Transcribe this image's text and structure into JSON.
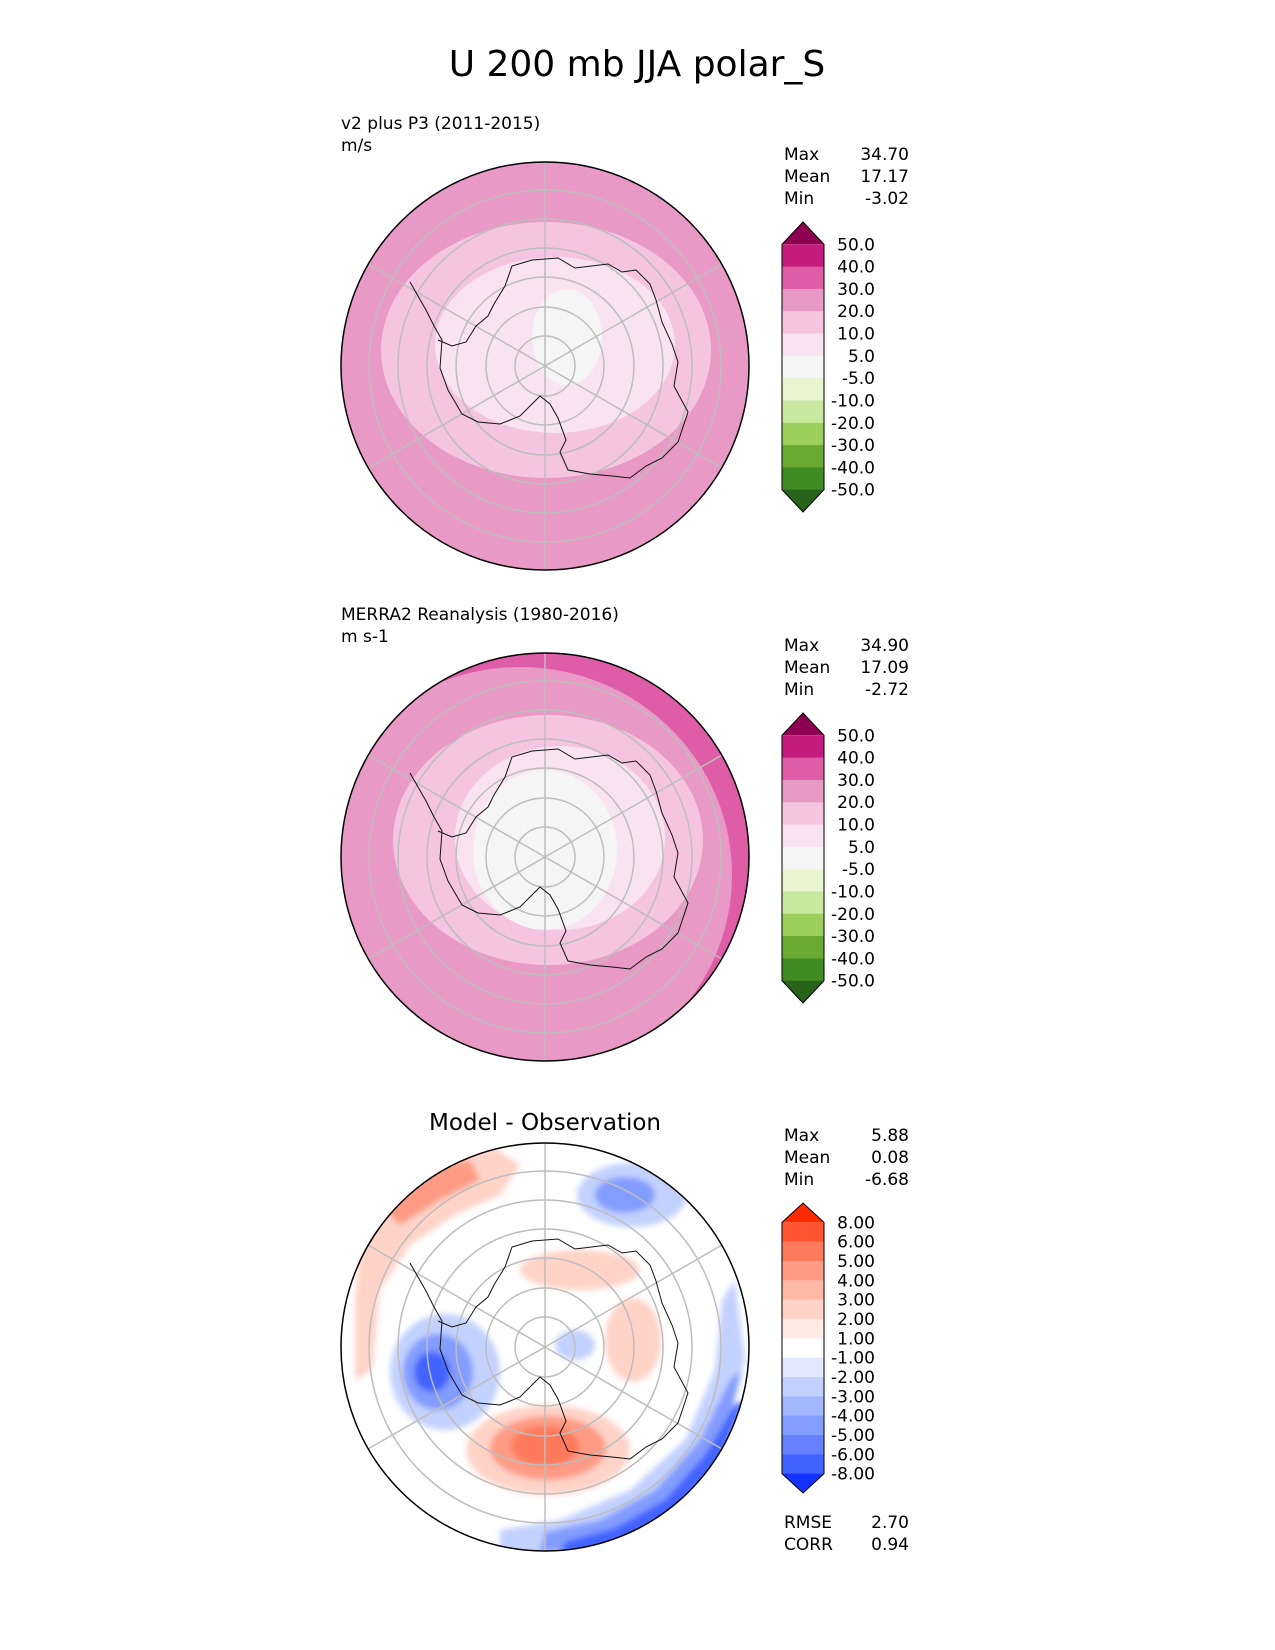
{
  "chart_data": {
    "type": "heatmap",
    "title": "U 200 mb JJA polar_S",
    "projection": "south polar stereographic",
    "panels": [
      {
        "id": "model",
        "label": "v2 plus P3 (2011-2015)",
        "units": "m/s",
        "stats": [
          {
            "name": "Max",
            "value": "34.70"
          },
          {
            "name": "Mean",
            "value": "17.17"
          },
          {
            "name": "Min",
            "value": "-3.02"
          }
        ],
        "colorbar": {
          "levels": [
            "50.0",
            "40.0",
            "30.0",
            "20.0",
            "10.0",
            "5.0",
            "-5.0",
            "-10.0",
            "-20.0",
            "-30.0",
            "-40.0",
            "-50.0"
          ],
          "colors": [
            "#8e0152",
            "#c51b7d",
            "#de5da6",
            "#e899c6",
            "#f4c4e0",
            "#fae3f0",
            "#f5f5f5",
            "#e8f5d0",
            "#c8e8a0",
            "#9ccf5c",
            "#6aaa32",
            "#418c22",
            "#276419"
          ]
        },
        "zones": [
          {
            "level": "20 to 30",
            "color": "#e899c6"
          },
          {
            "level": "10 to 20",
            "color": "#f4c4e0"
          },
          {
            "level": "5 to 10",
            "color": "#fae3f0"
          },
          {
            "level": "-5 to 5",
            "color": "#f5f5f5"
          }
        ]
      },
      {
        "id": "obs",
        "label": "MERRA2 Reanalysis (1980-2016)",
        "units": "m s-1",
        "stats": [
          {
            "name": "Max",
            "value": "34.90"
          },
          {
            "name": "Mean",
            "value": "17.09"
          },
          {
            "name": "Min",
            "value": "-2.72"
          }
        ],
        "colorbar": {
          "levels": [
            "50.0",
            "40.0",
            "30.0",
            "20.0",
            "10.0",
            "5.0",
            "-5.0",
            "-10.0",
            "-20.0",
            "-30.0",
            "-40.0",
            "-50.0"
          ],
          "colors": [
            "#8e0152",
            "#c51b7d",
            "#de5da6",
            "#e899c6",
            "#f4c4e0",
            "#fae3f0",
            "#f5f5f5",
            "#e8f5d0",
            "#c8e8a0",
            "#9ccf5c",
            "#6aaa32",
            "#418c22",
            "#276419"
          ]
        },
        "zones": [
          {
            "level": "30 to 40",
            "color": "#de5da6"
          },
          {
            "level": "20 to 30",
            "color": "#e899c6"
          },
          {
            "level": "10 to 20",
            "color": "#f4c4e0"
          },
          {
            "level": "5 to 10",
            "color": "#fae3f0"
          },
          {
            "level": "-5 to 5",
            "color": "#f5f5f5"
          }
        ]
      },
      {
        "id": "diff",
        "label": "Model - Observation",
        "stats": [
          {
            "name": "Max",
            "value": "5.88"
          },
          {
            "name": "Mean",
            "value": "0.08"
          },
          {
            "name": "Min",
            "value": "-6.68"
          }
        ],
        "metrics": [
          {
            "name": "RMSE",
            "value": "2.70"
          },
          {
            "name": "CORR",
            "value": "0.94"
          }
        ],
        "colorbar": {
          "levels": [
            "8.00",
            "6.00",
            "5.00",
            "4.00",
            "3.00",
            "2.00",
            "1.00",
            "-1.00",
            "-2.00",
            "-3.00",
            "-4.00",
            "-5.00",
            "-6.00",
            "-8.00"
          ],
          "colors": [
            "#ff2a00",
            "#ff5533",
            "#ff7a5c",
            "#ff9b85",
            "#ffb8a6",
            "#ffd3c8",
            "#ffeae4",
            "#ffffff",
            "#e1e8ff",
            "#c3d1ff",
            "#a3b7ff",
            "#839cff",
            "#6680ff",
            "#4263ff",
            "#1433ff"
          ]
        },
        "zones": [
          {
            "level": "1 to 3",
            "color": "#ffd3c8"
          },
          {
            "level": "3 to 5",
            "color": "#ff9b85"
          },
          {
            "level": "5 to 6",
            "color": "#ff7a5c"
          },
          {
            "level": "-1 to -3",
            "color": "#c3d1ff"
          },
          {
            "level": "-3 to -5",
            "color": "#839cff"
          },
          {
            "level": "-5 to -8",
            "color": "#4263ff"
          }
        ]
      }
    ]
  }
}
